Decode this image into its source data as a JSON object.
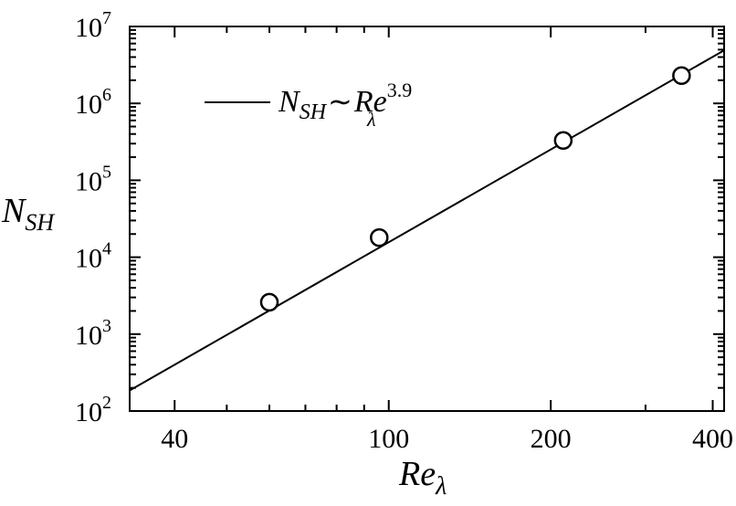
{
  "chart_data": {
    "type": "scatter",
    "xscale": "log",
    "yscale": "log",
    "xlim": [
      33,
      420
    ],
    "ylim": [
      100,
      10000000
    ],
    "x_ticks": [
      {
        "value": 40,
        "label": "40"
      },
      {
        "value": 100,
        "label": "100"
      },
      {
        "value": 200,
        "label": "200"
      },
      {
        "value": 400,
        "label": "400"
      }
    ],
    "y_ticks": [
      {
        "value": 100,
        "base": "10",
        "exp": "2"
      },
      {
        "value": 1000,
        "base": "10",
        "exp": "3"
      },
      {
        "value": 10000,
        "base": "10",
        "exp": "4"
      },
      {
        "value": 100000,
        "base": "10",
        "exp": "5"
      },
      {
        "value": 1000000,
        "base": "10",
        "exp": "6"
      },
      {
        "value": 10000000,
        "base": "10",
        "exp": "7"
      }
    ],
    "xlabel": {
      "main": "Re",
      "sub": "λ"
    },
    "ylabel": {
      "main": "N",
      "sub": "SH"
    },
    "points": [
      {
        "x": 60,
        "y": 2600
      },
      {
        "x": 96,
        "y": 18000
      },
      {
        "x": 211,
        "y": 330000
      },
      {
        "x": 350,
        "y": 2300000
      }
    ],
    "fit_line": {
      "x": [
        33,
        420
      ],
      "y": [
        185,
        4900000
      ]
    },
    "legend": {
      "position": "top-left",
      "n": "N",
      "n_sub": "SH",
      "sim": "∼",
      "re": "Re",
      "re_sub": "λ",
      "re_sup": "3.9"
    },
    "grid": false
  }
}
